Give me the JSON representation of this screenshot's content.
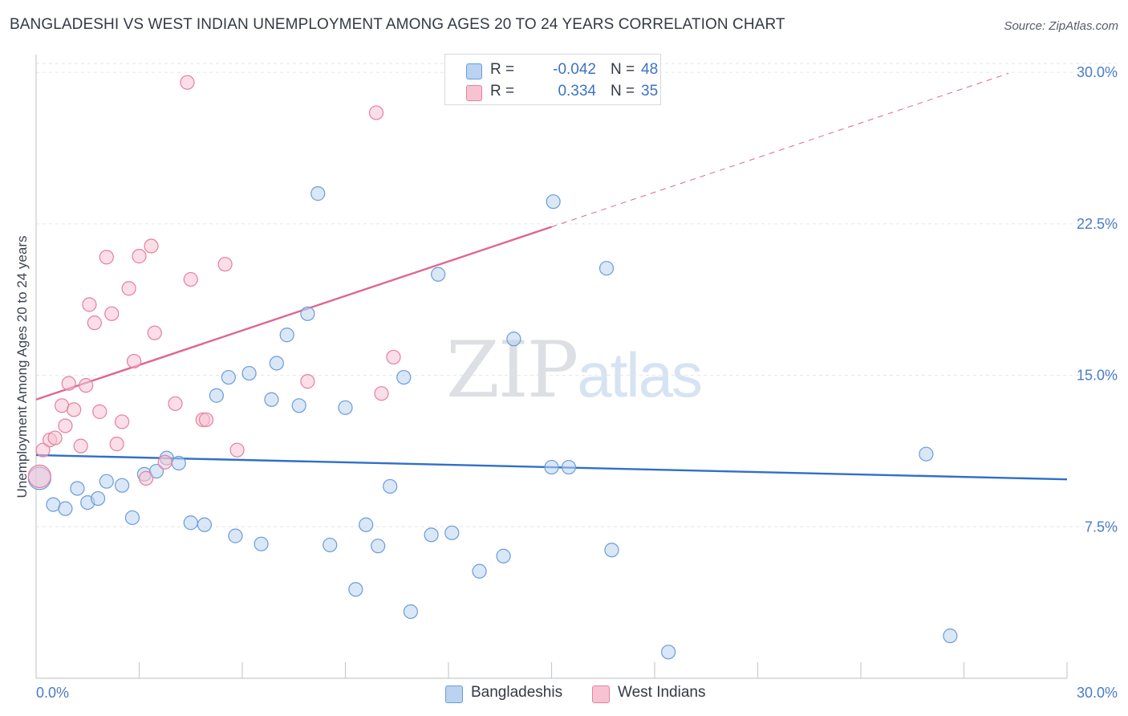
{
  "title": "BANGLADESHI VS WEST INDIAN UNEMPLOYMENT AMONG AGES 20 TO 24 YEARS CORRELATION CHART",
  "source": "Source: ZipAtlas.com",
  "watermark": {
    "zip": "ZIP",
    "atlas": "atlas"
  },
  "legend": {
    "bangladeshi": {
      "r_label": "R =",
      "r_value": "-0.042",
      "n_label": "N =",
      "n_value": "48"
    },
    "westindian": {
      "r_label": "R =",
      "r_value": "0.334",
      "n_label": "N =",
      "n_value": "35"
    }
  },
  "bottom_legend": {
    "bangladeshi": "Bangladeshis",
    "westindian": "West Indians"
  },
  "colors": {
    "blue_fill": "#b9d3f0",
    "blue_stroke": "#6b9cd8",
    "blue_line": "#2f6fca",
    "pink_fill": "#f7c3d3",
    "pink_stroke": "#e4809f",
    "pink_line": "#e0668f",
    "grid": "#e3e6ea",
    "axis_text": "#4a7bc8"
  },
  "chart_data": {
    "type": "scatter",
    "title": "BANGLADESHI VS WEST INDIAN UNEMPLOYMENT AMONG AGES 20 TO 24 YEARS CORRELATION CHART",
    "xlabel": "",
    "ylabel": "Unemployment Among Ages 20 to 24 years",
    "xlim": [
      0,
      30
    ],
    "ylim": [
      0,
      30.8
    ],
    "x_ticks": [
      {
        "value": 0,
        "label": "0.0%"
      },
      {
        "value": 30,
        "label": "30.0%"
      }
    ],
    "y_ticks": [
      {
        "value": 7.5,
        "label": "7.5%"
      },
      {
        "value": 15,
        "label": "15.0%"
      },
      {
        "value": 22.5,
        "label": "22.5%"
      },
      {
        "value": 30,
        "label": "30.0%"
      }
    ],
    "x_minor_ticks": [
      3,
      6,
      9,
      12,
      15,
      18,
      21,
      24,
      27,
      30
    ],
    "series": [
      {
        "name": "Bangladeshis",
        "color_key": "blue",
        "points": [
          [
            0.1,
            9.9
          ],
          [
            0.5,
            8.6
          ],
          [
            0.85,
            8.4
          ],
          [
            1.2,
            9.4
          ],
          [
            1.5,
            8.7
          ],
          [
            1.8,
            8.9
          ],
          [
            2.05,
            9.75
          ],
          [
            2.5,
            9.55
          ],
          [
            2.8,
            7.95
          ],
          [
            3.15,
            10.1
          ],
          [
            3.5,
            10.25
          ],
          [
            3.8,
            10.9
          ],
          [
            4.15,
            10.65
          ],
          [
            4.5,
            7.7
          ],
          [
            4.9,
            7.6
          ],
          [
            5.25,
            14.0
          ],
          [
            5.6,
            14.9
          ],
          [
            5.8,
            7.05
          ],
          [
            6.2,
            15.1
          ],
          [
            6.55,
            6.65
          ],
          [
            6.85,
            13.8
          ],
          [
            7.0,
            15.6
          ],
          [
            7.3,
            17.0
          ],
          [
            7.65,
            13.5
          ],
          [
            7.9,
            18.05
          ],
          [
            8.2,
            24.0
          ],
          [
            8.55,
            6.6
          ],
          [
            9.0,
            13.4
          ],
          [
            9.3,
            4.4
          ],
          [
            9.6,
            7.6
          ],
          [
            9.95,
            6.55
          ],
          [
            10.3,
            9.5
          ],
          [
            10.7,
            14.9
          ],
          [
            10.9,
            3.3
          ],
          [
            11.5,
            7.1
          ],
          [
            11.7,
            20.0
          ],
          [
            12.1,
            7.2
          ],
          [
            12.9,
            5.3
          ],
          [
            13.6,
            6.05
          ],
          [
            13.9,
            16.8
          ],
          [
            15.0,
            10.45
          ],
          [
            15.05,
            23.6
          ],
          [
            15.5,
            10.45
          ],
          [
            16.6,
            20.3
          ],
          [
            16.75,
            6.35
          ],
          [
            18.4,
            1.3
          ],
          [
            25.9,
            11.1
          ],
          [
            26.6,
            2.1
          ]
        ]
      },
      {
        "name": "West Indians",
        "color_key": "pink",
        "points": [
          [
            0.1,
            10.0
          ],
          [
            0.2,
            11.3
          ],
          [
            0.4,
            11.8
          ],
          [
            0.55,
            11.9
          ],
          [
            0.75,
            13.5
          ],
          [
            0.85,
            12.5
          ],
          [
            0.95,
            14.6
          ],
          [
            1.1,
            13.3
          ],
          [
            1.3,
            11.5
          ],
          [
            1.45,
            14.5
          ],
          [
            1.55,
            18.5
          ],
          [
            1.7,
            17.6
          ],
          [
            1.85,
            13.2
          ],
          [
            2.05,
            20.85
          ],
          [
            2.2,
            18.05
          ],
          [
            2.35,
            11.6
          ],
          [
            2.5,
            12.7
          ],
          [
            2.7,
            19.3
          ],
          [
            2.85,
            15.7
          ],
          [
            3.0,
            20.9
          ],
          [
            3.2,
            9.9
          ],
          [
            3.35,
            21.4
          ],
          [
            3.45,
            17.1
          ],
          [
            3.75,
            10.7
          ],
          [
            4.05,
            13.6
          ],
          [
            4.4,
            29.5
          ],
          [
            4.5,
            19.75
          ],
          [
            4.85,
            12.8
          ],
          [
            4.95,
            12.8
          ],
          [
            5.5,
            20.5
          ],
          [
            5.85,
            11.3
          ],
          [
            7.9,
            14.7
          ],
          [
            9.9,
            28.0
          ],
          [
            10.05,
            14.1
          ],
          [
            10.4,
            15.9
          ]
        ]
      }
    ],
    "trendlines": [
      {
        "series": "Bangladeshis",
        "x": [
          0,
          30
        ],
        "y": [
          11.05,
          9.85
        ],
        "style": "solid"
      },
      {
        "series": "West Indians",
        "x": [
          0,
          15
        ],
        "y": [
          13.8,
          22.35
        ],
        "style": "solid"
      },
      {
        "series": "West Indians",
        "x": [
          15,
          28.3
        ],
        "y": [
          22.35,
          29.95
        ],
        "style": "dashed"
      }
    ]
  }
}
